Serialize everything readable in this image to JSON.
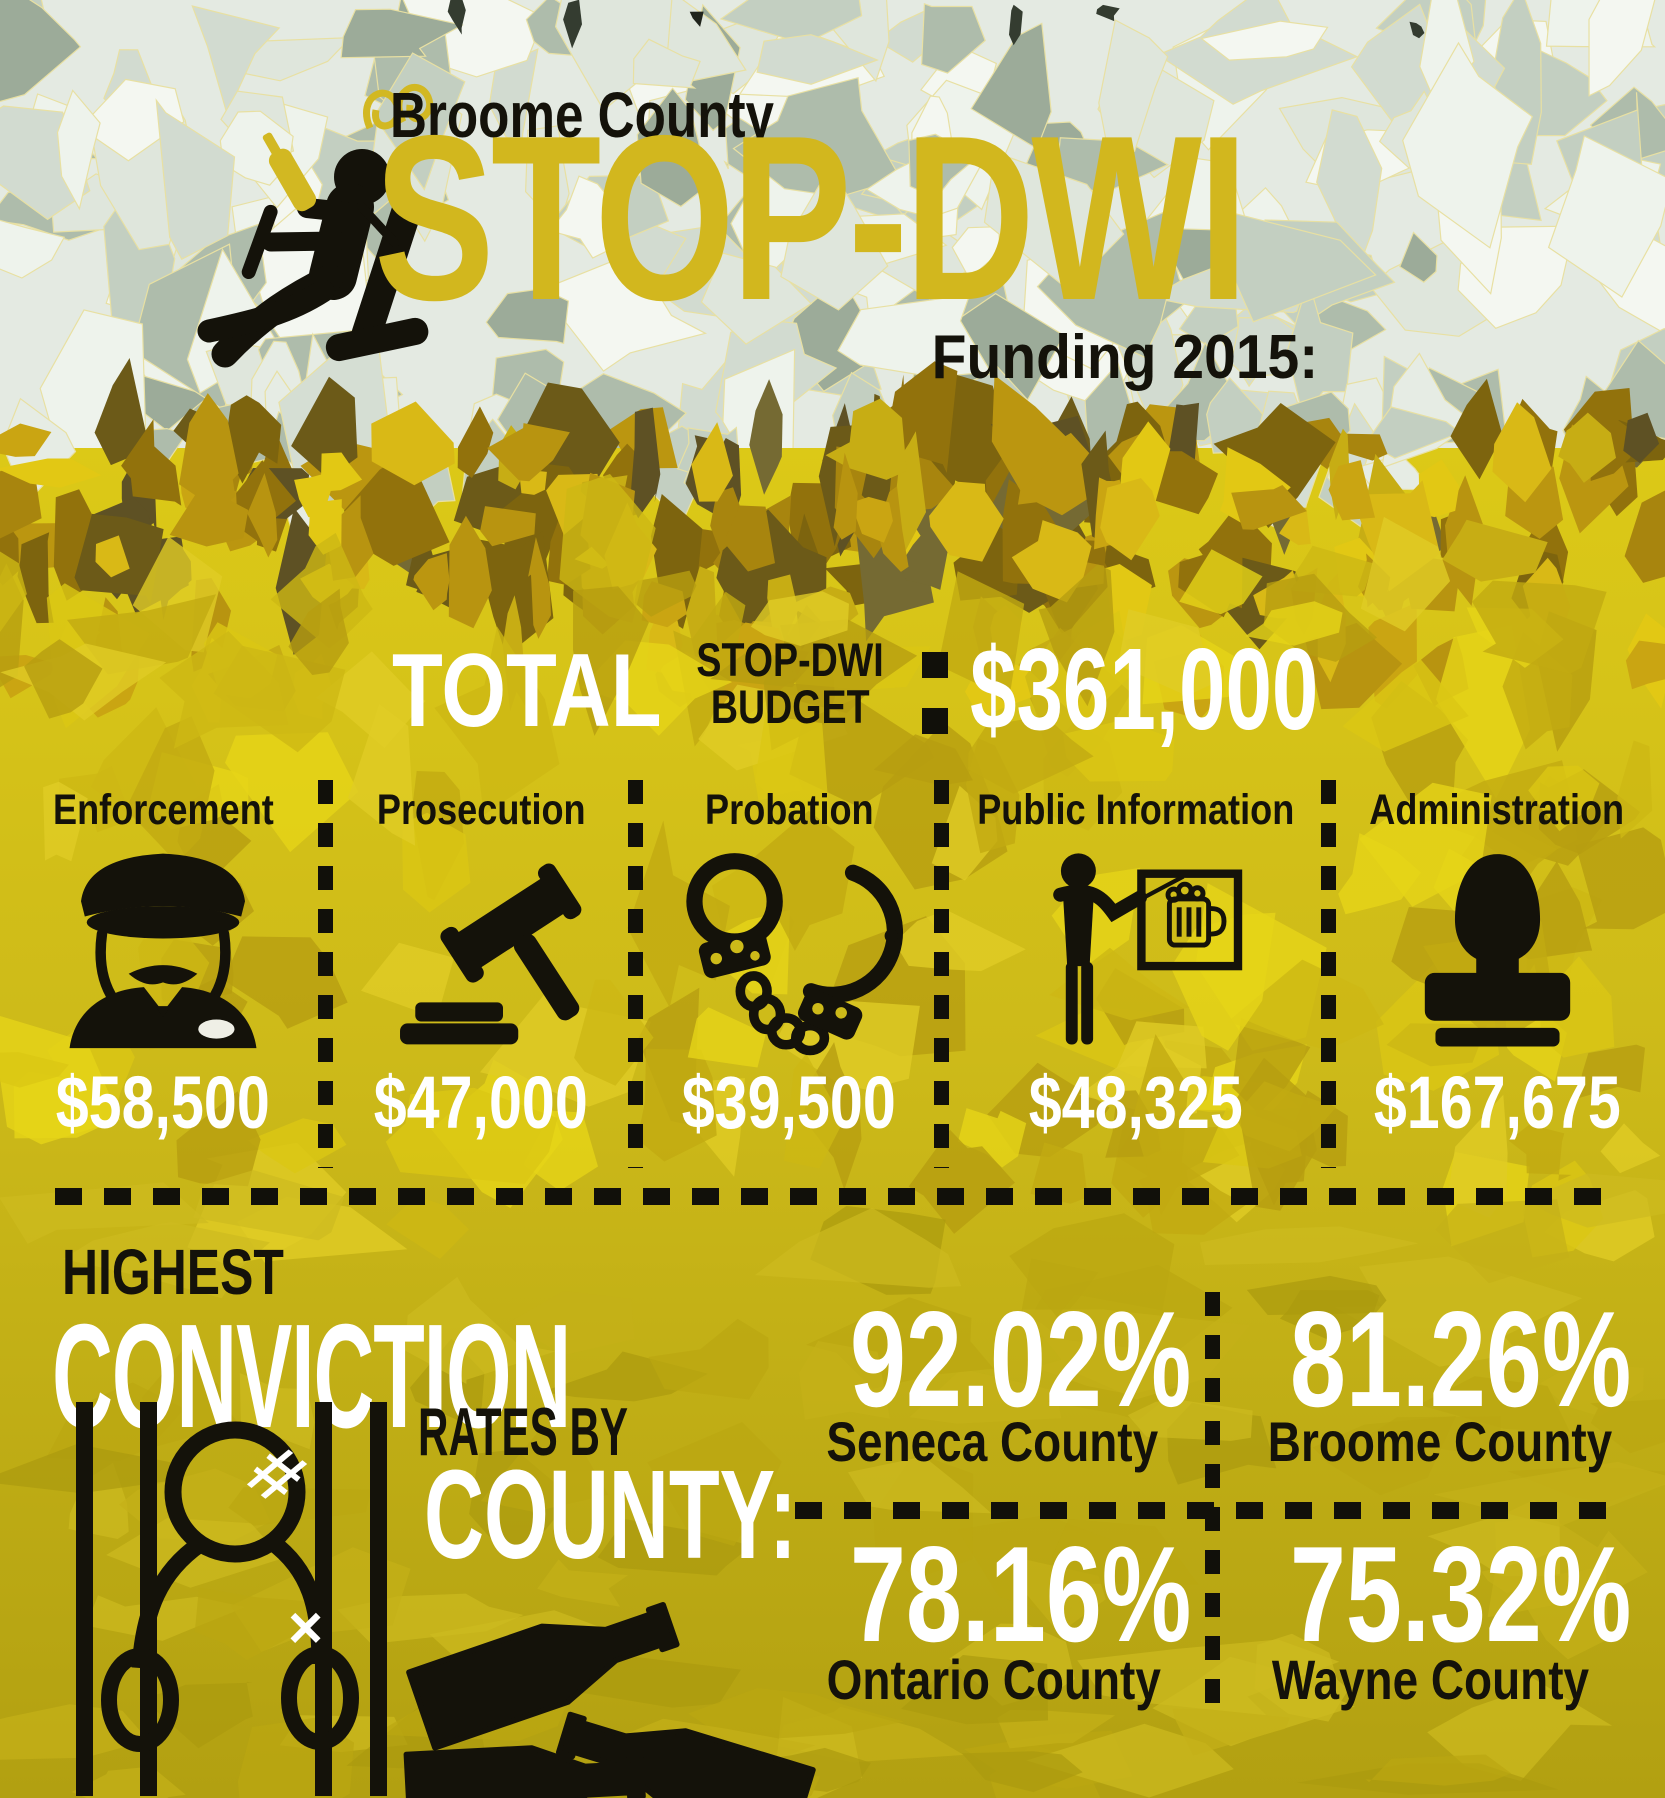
{
  "header": {
    "county": "Broome County",
    "program": "STOP-DWI",
    "subtitle": "Funding 2015:"
  },
  "budget": {
    "total_label": "TOTAL",
    "budget_label_line1": "STOP-DWI",
    "budget_label_line2": "BUDGET",
    "amount": "$361,000"
  },
  "categories": [
    {
      "name": "Enforcement",
      "amount": "$58,500",
      "icon": "police-officer-icon"
    },
    {
      "name": "Prosecution",
      "amount": "$47,000",
      "icon": "gavel-icon"
    },
    {
      "name": "Probation",
      "amount": "$39,500",
      "icon": "handcuffs-icon"
    },
    {
      "name": "Public Information",
      "amount": "$48,325",
      "icon": "presenter-beer-board-icon"
    },
    {
      "name": "Administration",
      "amount": "$167,675",
      "icon": "rubber-stamp-icon"
    }
  ],
  "conviction": {
    "line1": "HIGHEST",
    "line2": "CONVICTION",
    "line3": "RATES BY",
    "line4": "COUNTY:",
    "stats": [
      {
        "value": "92.02%",
        "county": "Seneca County"
      },
      {
        "value": "81.26%",
        "county": "Broome County"
      },
      {
        "value": "78.16%",
        "county": "Ontario County"
      },
      {
        "value": "75.32%",
        "county": "Wayne County"
      }
    ]
  },
  "colors": {
    "gold_title": "#d2b71e",
    "beer_top": "#dcc917",
    "beer_bottom": "#b2a011",
    "foam": "#e4eae2",
    "ink": "#14120a",
    "white": "#ffffff"
  }
}
